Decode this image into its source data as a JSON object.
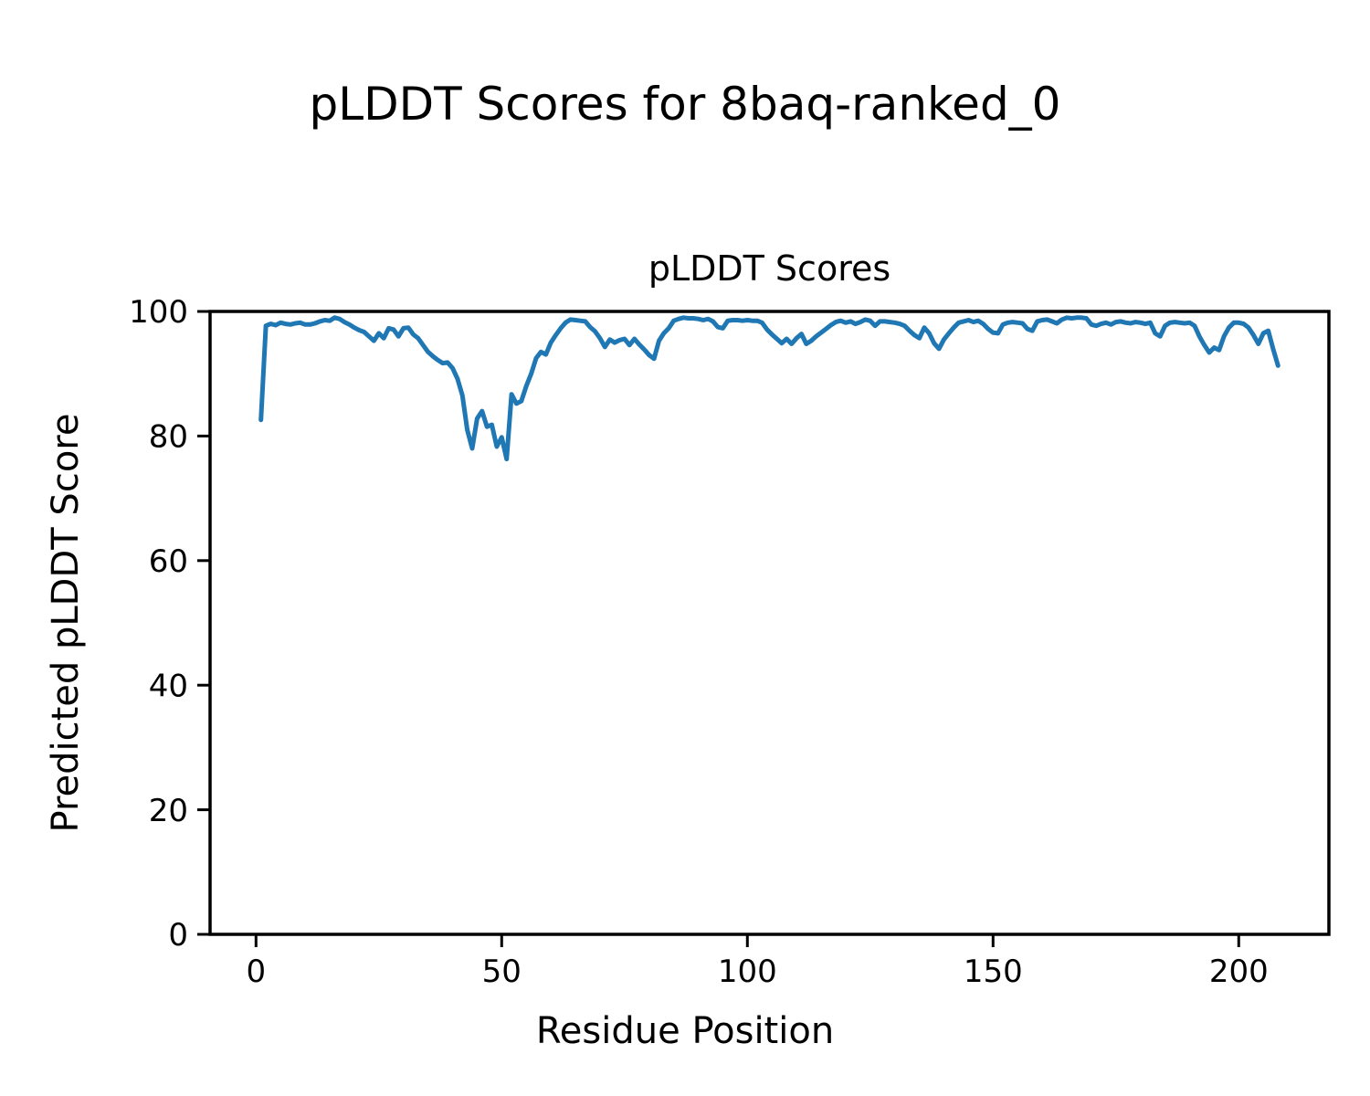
{
  "figure": {
    "suptitle": "pLDDT Scores for 8baq-ranked_0",
    "background_color": "#ffffff",
    "text_color": "#000000"
  },
  "chart_data": {
    "type": "line",
    "title": "pLDDT Scores",
    "xlabel": "Residue Position",
    "ylabel": "Predicted pLDDT Score",
    "legend": "none",
    "grid": false,
    "line_color": "#1f77b4",
    "spine_color": "#000000",
    "xlim": [
      -9.35,
      218.35
    ],
    "ylim": [
      0,
      100
    ],
    "xticks": [
      0,
      50,
      100,
      150,
      200
    ],
    "yticks": [
      0,
      20,
      40,
      60,
      80,
      100
    ],
    "x_start": 1,
    "x_step": 1,
    "series_name": "pLDDT",
    "values": [
      82.6,
      97.7,
      98.0,
      97.8,
      98.2,
      98.0,
      97.9,
      98.1,
      98.2,
      97.9,
      97.9,
      98.1,
      98.4,
      98.6,
      98.5,
      99.0,
      98.8,
      98.3,
      97.9,
      97.4,
      97.0,
      96.7,
      96.0,
      95.3,
      96.5,
      95.7,
      97.3,
      97.1,
      96.0,
      97.3,
      97.4,
      96.3,
      95.7,
      94.6,
      93.5,
      92.8,
      92.2,
      91.7,
      91.8,
      90.9,
      89.2,
      86.5,
      81.0,
      78.0,
      82.8,
      84.0,
      81.5,
      81.8,
      78.3,
      79.8,
      76.3,
      86.7,
      85.2,
      85.6,
      88.0,
      90.0,
      92.5,
      93.5,
      93.1,
      95.0,
      96.2,
      97.3,
      98.2,
      98.7,
      98.6,
      98.5,
      98.4,
      97.5,
      96.8,
      95.7,
      94.3,
      95.5,
      95.0,
      95.4,
      95.6,
      94.6,
      95.6,
      94.7,
      93.9,
      93.0,
      92.4,
      95.3,
      96.5,
      97.3,
      98.5,
      98.8,
      99.0,
      98.9,
      98.9,
      98.8,
      98.6,
      98.8,
      98.4,
      97.5,
      97.3,
      98.5,
      98.6,
      98.6,
      98.5,
      98.6,
      98.5,
      98.5,
      98.2,
      97.1,
      96.3,
      95.6,
      94.9,
      95.6,
      94.8,
      95.7,
      96.4,
      94.8,
      95.3,
      96.0,
      96.6,
      97.2,
      97.8,
      98.3,
      98.5,
      98.2,
      98.4,
      98.0,
      98.3,
      98.7,
      98.5,
      97.7,
      98.4,
      98.4,
      98.3,
      98.2,
      98.0,
      97.7,
      96.9,
      96.2,
      95.7,
      97.4,
      96.5,
      94.9,
      94.0,
      95.5,
      96.5,
      97.4,
      98.2,
      98.4,
      98.6,
      98.3,
      98.5,
      98.0,
      97.2,
      96.6,
      96.5,
      97.9,
      98.2,
      98.3,
      98.2,
      98.1,
      97.2,
      96.9,
      98.4,
      98.6,
      98.7,
      98.4,
      98.1,
      98.7,
      99.0,
      98.9,
      99.0,
      99.0,
      98.9,
      97.9,
      97.7,
      98.0,
      98.2,
      97.9,
      98.3,
      98.4,
      98.2,
      98.1,
      98.3,
      98.2,
      98.0,
      98.2,
      96.5,
      96.0,
      97.7,
      98.2,
      98.3,
      98.2,
      98.1,
      98.2,
      97.7,
      96.0,
      94.6,
      93.4,
      94.2,
      93.8,
      96.0,
      97.4,
      98.2,
      98.2,
      98.0,
      97.4,
      96.2,
      94.8,
      96.5,
      96.9,
      94.0,
      91.3
    ]
  }
}
